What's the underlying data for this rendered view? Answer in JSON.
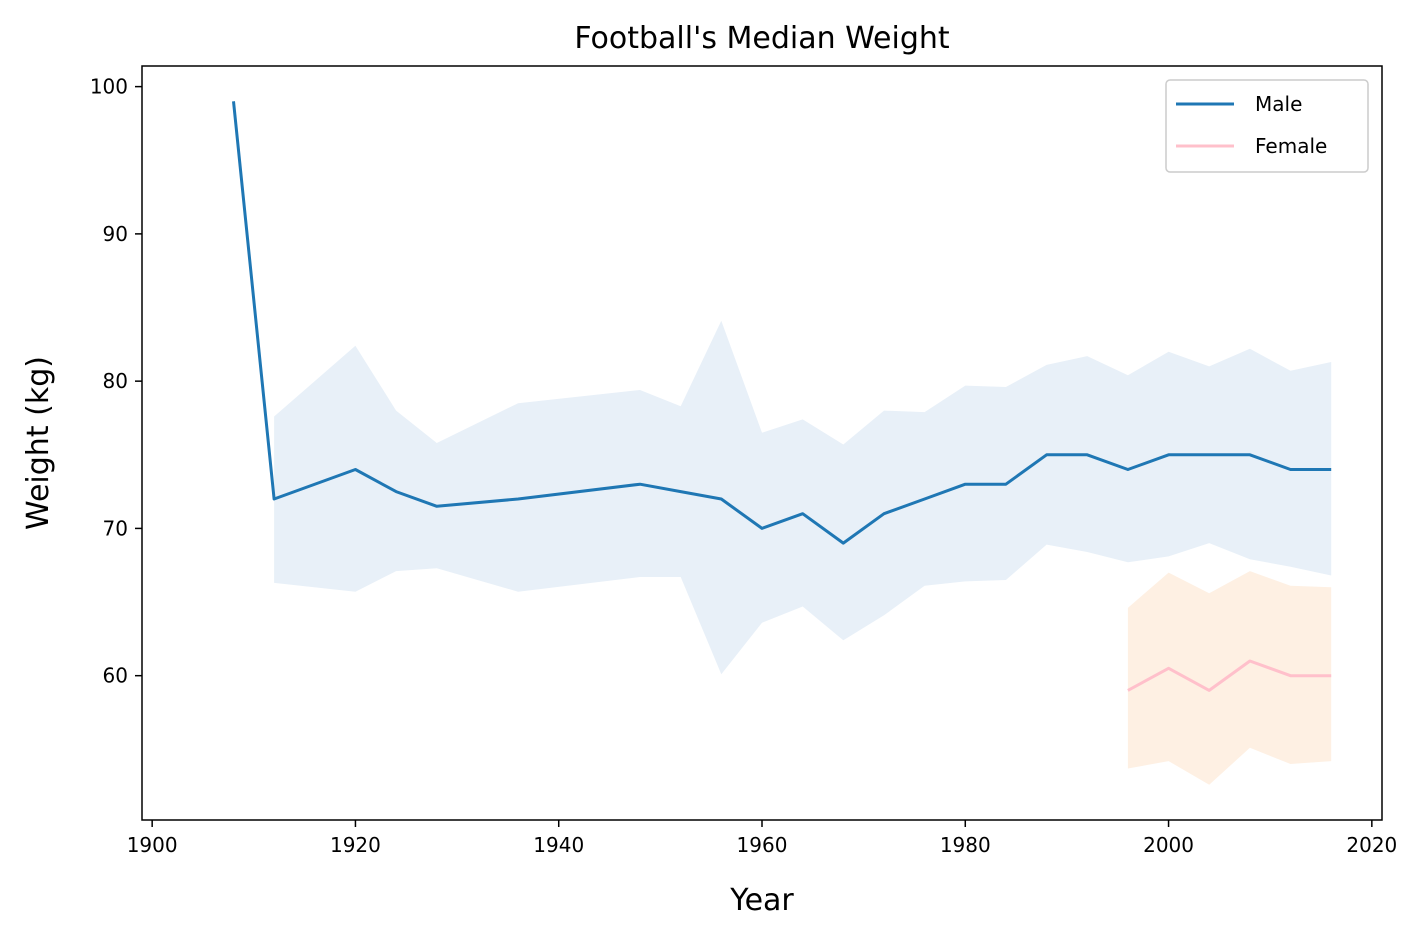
{
  "chart_data": {
    "type": "line",
    "title": "Football's Median Weight",
    "xlabel": "Year",
    "ylabel": "Weight (kg)",
    "xlim": [
      1899,
      2021
    ],
    "ylim": [
      50.2,
      101.4
    ],
    "xticks": [
      1900,
      1920,
      1940,
      1960,
      1980,
      2000,
      2020
    ],
    "yticks": [
      60,
      70,
      80,
      90,
      100
    ],
    "grid": false,
    "legend_position": "top-right",
    "series": [
      {
        "name": "Male",
        "color": "#1f77b4",
        "band_color": "#e8f0f8",
        "x": [
          1908,
          1912,
          1920,
          1924,
          1928,
          1936,
          1948,
          1952,
          1956,
          1960,
          1964,
          1968,
          1972,
          1976,
          1980,
          1984,
          1988,
          1992,
          1996,
          2000,
          2004,
          2008,
          2012,
          2016
        ],
        "values": [
          99,
          72,
          74,
          72.5,
          71.5,
          72,
          73,
          72.5,
          72,
          70,
          71,
          69,
          71,
          72,
          73,
          73,
          75,
          75,
          74,
          75,
          75,
          75,
          74,
          74
        ],
        "lower": [
          null,
          66.3,
          65.7,
          67.1,
          67.3,
          65.7,
          66.7,
          66.7,
          60.1,
          63.6,
          64.7,
          62.4,
          64.1,
          66.1,
          66.4,
          66.5,
          68.9,
          68.4,
          67.7,
          68.1,
          69,
          67.9,
          67.4,
          66.8
        ],
        "upper": [
          null,
          77.6,
          82.4,
          78,
          75.8,
          78.5,
          79.4,
          78.3,
          84.1,
          76.5,
          77.4,
          75.7,
          78,
          77.9,
          79.7,
          79.6,
          81.1,
          81.7,
          80.4,
          82,
          81,
          82.2,
          80.7,
          81.3
        ]
      },
      {
        "name": "Female",
        "color": "#ffc0cb",
        "band_color": "#fef0e3",
        "x": [
          1996,
          2000,
          2004,
          2008,
          2012,
          2016
        ],
        "values": [
          59,
          60.5,
          59,
          61,
          60,
          60
        ],
        "lower": [
          53.7,
          54.2,
          52.6,
          55.1,
          54,
          54.2
        ],
        "upper": [
          64.6,
          67,
          65.6,
          67.1,
          66.1,
          66
        ]
      }
    ]
  }
}
